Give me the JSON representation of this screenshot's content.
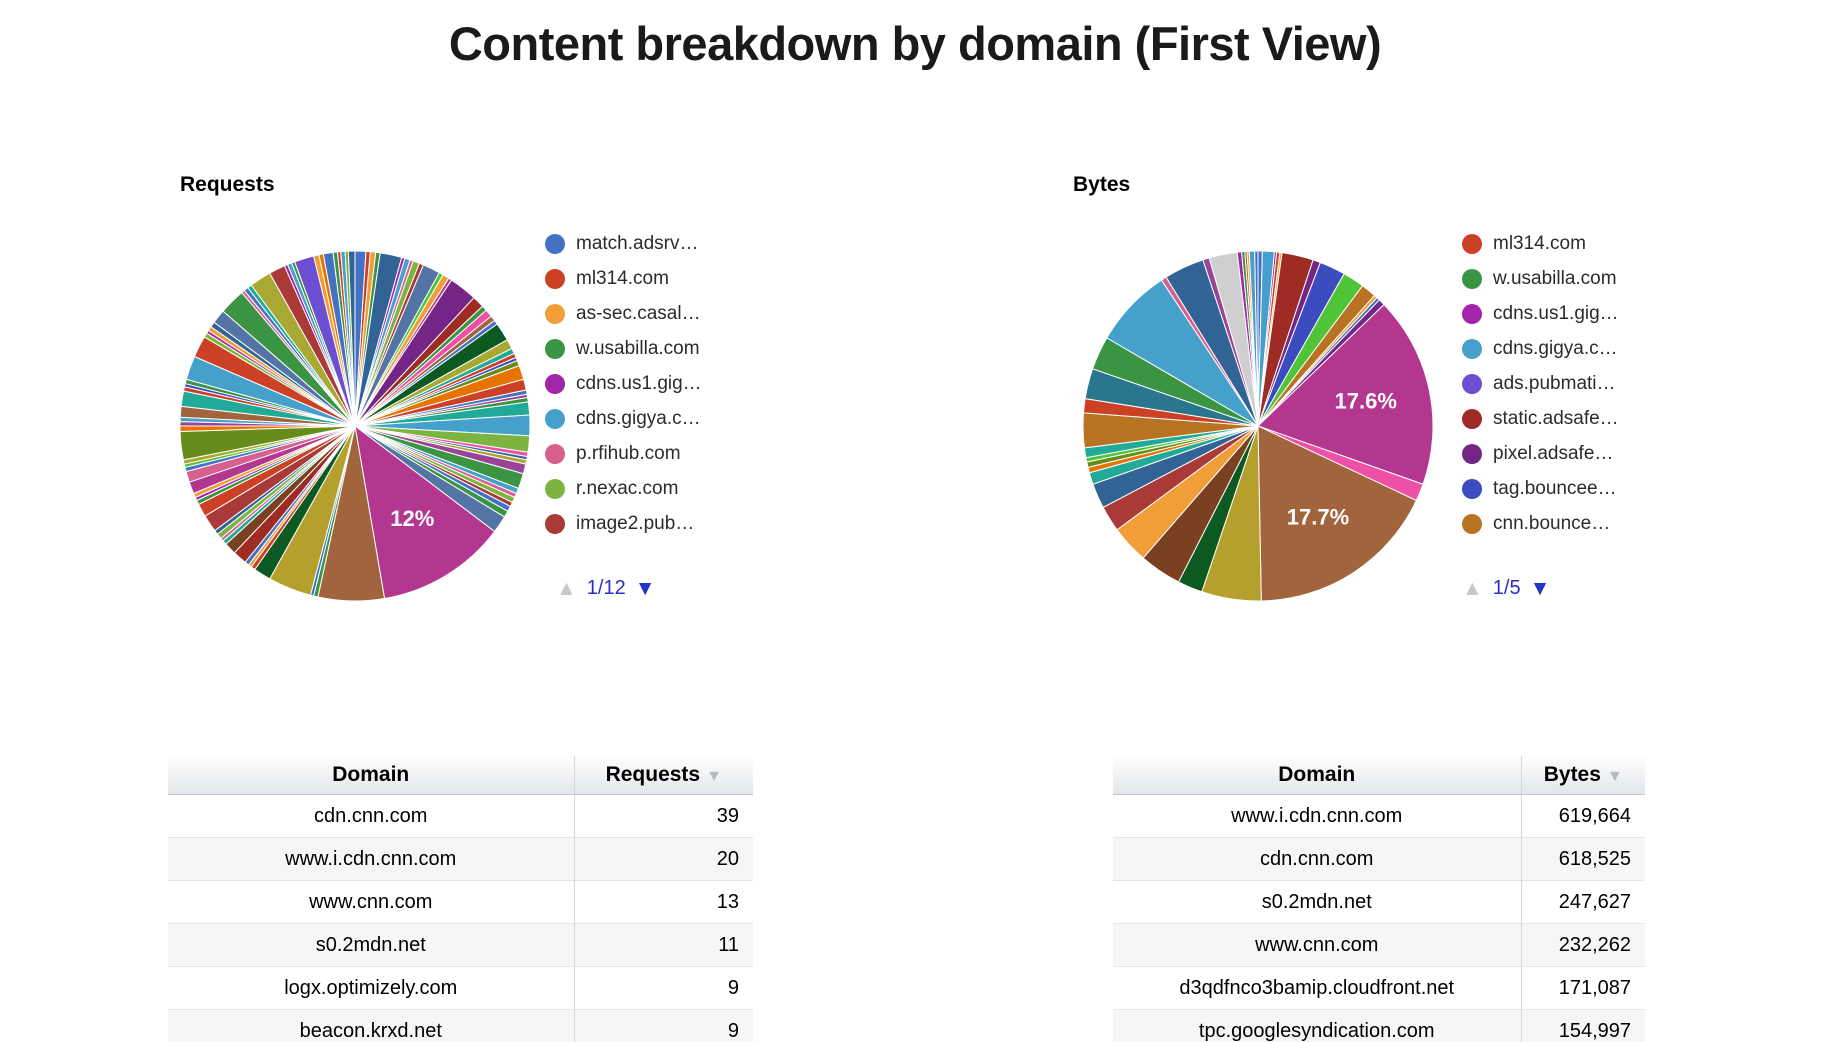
{
  "page": {
    "title": "Content breakdown by domain (First View)"
  },
  "icons": {
    "legend_prev": "▲",
    "legend_next": "▼",
    "sort_desc": "▼"
  },
  "colors": {
    "pagination_blue": "#2C2CC8",
    "pagination_disabled": "#C8C8C8",
    "requests_top_slice_magenta": "#B3368F",
    "bytes_top_slice_magenta": "#B3368F",
    "bytes_top_slice_brown": "#A2643C"
  },
  "chart_data": [
    {
      "type": "pie",
      "title": "Requests",
      "legend": {
        "position": "right",
        "page": "1/12",
        "items": [
          {
            "label": "match.adsrv…",
            "color": "#4372C4"
          },
          {
            "label": "ml314.com",
            "color": "#CC4125"
          },
          {
            "label": "as-sec.casal…",
            "color": "#F19D38"
          },
          {
            "label": "w.usabilla.com",
            "color": "#3B9444"
          },
          {
            "label": "cdns.us1.gig…",
            "color": "#A224A8"
          },
          {
            "label": "cdns.gigya.c…",
            "color": "#45A1CB"
          },
          {
            "label": "p.rfihub.com",
            "color": "#D8608F"
          },
          {
            "label": "r.nexac.com",
            "color": "#7CB440"
          },
          {
            "label": "image2.pub…",
            "color": "#A93A38"
          }
        ]
      },
      "labeled_slices": [
        {
          "label": "12%",
          "domain": "cdn.cnn.com"
        }
      ],
      "slices": [
        [
          1.0,
          "#4372C4"
        ],
        [
          0.4,
          "#CC4125"
        ],
        [
          0.5,
          "#F19D38"
        ],
        [
          0.4,
          "#3B9444"
        ],
        [
          2.0,
          "#316395"
        ],
        [
          0.3,
          "#A224A8"
        ],
        [
          0.5,
          "#45A1CB"
        ],
        [
          0.3,
          "#D8608F"
        ],
        [
          0.6,
          "#7CB440"
        ],
        [
          0.4,
          "#A93A38"
        ],
        [
          1.6,
          "#5574A6"
        ],
        [
          0.4,
          "#4FC436"
        ],
        [
          0.6,
          "#F19D38"
        ],
        [
          0.3,
          "#B3368F"
        ],
        [
          2.6,
          "#742687"
        ],
        [
          1.1,
          "#9E2B24"
        ],
        [
          0.5,
          "#3B9444"
        ],
        [
          0.7,
          "#EE4FA7"
        ],
        [
          0.5,
          "#A2643C"
        ],
        [
          0.4,
          "#4372C4"
        ],
        [
          1.7,
          "#0C5922"
        ],
        [
          0.9,
          "#A8A832"
        ],
        [
          0.5,
          "#22AA99"
        ],
        [
          0.4,
          "#CC4125"
        ],
        [
          0.3,
          "#3B4CC0"
        ],
        [
          0.5,
          "#668D1C"
        ],
        [
          1.3,
          "#E67300"
        ],
        [
          1.0,
          "#CC4125"
        ],
        [
          0.4,
          "#4372C4"
        ],
        [
          0.3,
          "#994499"
        ],
        [
          0.4,
          "#3B9444"
        ],
        [
          1.2,
          "#22AA99"
        ],
        [
          1.9,
          "#45A1CB"
        ],
        [
          1.5,
          "#7CB440"
        ],
        [
          0.4,
          "#EE4FA7"
        ],
        [
          0.3,
          "#316395"
        ],
        [
          0.4,
          "#A8A832"
        ],
        [
          0.9,
          "#994499"
        ],
        [
          1.4,
          "#3B9444"
        ],
        [
          0.5,
          "#45A1CB"
        ],
        [
          0.4,
          "#D8608F"
        ],
        [
          0.5,
          "#7CB440"
        ],
        [
          0.4,
          "#A93A38"
        ],
        [
          0.5,
          "#4372C4"
        ],
        [
          0.6,
          "#3B9444"
        ],
        [
          1.6,
          "#5574A6"
        ],
        [
          12.0,
          "#B3368F",
          "12%"
        ],
        [
          6.1,
          "#A2643C"
        ],
        [
          0.4,
          "#3B9444"
        ],
        [
          0.3,
          "#4372C4"
        ],
        [
          4.0,
          "#B5A02E"
        ],
        [
          1.6,
          "#0C5922"
        ],
        [
          0.4,
          "#CC4125"
        ],
        [
          0.3,
          "#F19D38"
        ],
        [
          0.4,
          "#4372C4"
        ],
        [
          1.3,
          "#9E2B24"
        ],
        [
          1.1,
          "#7A4022"
        ],
        [
          0.4,
          "#22AA99"
        ],
        [
          0.3,
          "#D8608F"
        ],
        [
          0.5,
          "#7CB440"
        ],
        [
          0.4,
          "#316395"
        ],
        [
          1.6,
          "#A93A38"
        ],
        [
          1.2,
          "#CC4125"
        ],
        [
          0.4,
          "#3B9444"
        ],
        [
          0.3,
          "#A224A8"
        ],
        [
          0.4,
          "#F19D38"
        ],
        [
          1.1,
          "#B3368F"
        ],
        [
          1.0,
          "#D8608F"
        ],
        [
          0.4,
          "#4372C4"
        ],
        [
          0.3,
          "#4FC436"
        ],
        [
          0.4,
          "#A8A832"
        ],
        [
          2.6,
          "#668D1C"
        ],
        [
          0.5,
          "#E67300"
        ],
        [
          0.4,
          "#994499"
        ],
        [
          0.4,
          "#45A1CB"
        ],
        [
          1.0,
          "#A2643C"
        ],
        [
          1.4,
          "#22AA99"
        ],
        [
          0.4,
          "#CC4125"
        ],
        [
          0.3,
          "#3B4CC0"
        ],
        [
          0.4,
          "#3B9444"
        ],
        [
          2.2,
          "#45A1CB"
        ],
        [
          2.0,
          "#CC4125"
        ],
        [
          0.4,
          "#7CB440"
        ],
        [
          0.3,
          "#B3368F"
        ],
        [
          0.4,
          "#F19D38"
        ],
        [
          0.5,
          "#316395"
        ],
        [
          1.3,
          "#5574A6"
        ],
        [
          2.4,
          "#3B9444"
        ],
        [
          0.3,
          "#D8608F"
        ],
        [
          0.4,
          "#4372C4"
        ],
        [
          0.4,
          "#22AA99"
        ],
        [
          2.0,
          "#A8A832"
        ],
        [
          1.5,
          "#A93A38"
        ],
        [
          0.3,
          "#A224A8"
        ],
        [
          0.4,
          "#45A1CB"
        ],
        [
          0.3,
          "#3B9444"
        ],
        [
          1.8,
          "#6B4FD0"
        ],
        [
          0.5,
          "#F19D38"
        ],
        [
          0.4,
          "#E67300"
        ],
        [
          0.9,
          "#4372C4"
        ],
        [
          0.4,
          "#3B9444"
        ],
        [
          0.3,
          "#CC4125"
        ],
        [
          0.4,
          "#45A1CB"
        ],
        [
          0.3,
          "#7CB440"
        ],
        [
          0.6,
          "#316395"
        ]
      ]
    },
    {
      "type": "pie",
      "title": "Bytes",
      "legend": {
        "position": "right",
        "page": "1/5",
        "items": [
          {
            "label": "ml314.com",
            "color": "#CC4125"
          },
          {
            "label": "w.usabilla.com",
            "color": "#3B9444"
          },
          {
            "label": "cdns.us1.gig…",
            "color": "#A224A8"
          },
          {
            "label": "cdns.gigya.c…",
            "color": "#45A1CB"
          },
          {
            "label": "ads.pubmati…",
            "color": "#6B4FD0"
          },
          {
            "label": "static.adsafe…",
            "color": "#9E2B24"
          },
          {
            "label": "pixel.adsafe…",
            "color": "#742687"
          },
          {
            "label": "tag.bouncee…",
            "color": "#3B4CC0"
          },
          {
            "label": "cnn.bounce…",
            "color": "#B77322"
          }
        ]
      },
      "labeled_slices": [
        {
          "label": "17.6%",
          "domain": "cdn.cnn.com"
        },
        {
          "label": "17.7%",
          "domain": "www.i.cdn.cnn.com"
        }
      ],
      "slices": [
        [
          0.4,
          "#4372C4"
        ],
        [
          1.1,
          "#45A1CB"
        ],
        [
          0.2,
          "#A224A8"
        ],
        [
          0.3,
          "#CC4125"
        ],
        [
          0.2,
          "#F19D38"
        ],
        [
          2.9,
          "#9E2B24"
        ],
        [
          0.7,
          "#742687"
        ],
        [
          2.4,
          "#3B4CC0"
        ],
        [
          2.0,
          "#4FC436"
        ],
        [
          1.4,
          "#B77322"
        ],
        [
          0.3,
          "#F19D38"
        ],
        [
          0.3,
          "#4372C4"
        ],
        [
          0.6,
          "#742687"
        ],
        [
          17.6,
          "#B3368F",
          "17.6%"
        ],
        [
          1.6,
          "#EE4FA7"
        ],
        [
          17.7,
          "#A2643C",
          "17.7%"
        ],
        [
          5.5,
          "#B5A02E"
        ],
        [
          2.3,
          "#0C5922"
        ],
        [
          3.9,
          "#7A4022"
        ],
        [
          3.5,
          "#F19D38"
        ],
        [
          2.4,
          "#A93A38"
        ],
        [
          2.3,
          "#316395"
        ],
        [
          1.1,
          "#22AA99"
        ],
        [
          0.5,
          "#E67300"
        ],
        [
          0.5,
          "#668D1C"
        ],
        [
          0.4,
          "#4FC436"
        ],
        [
          0.9,
          "#22AA99"
        ],
        [
          3.2,
          "#B77322"
        ],
        [
          1.3,
          "#CC4125"
        ],
        [
          2.8,
          "#2A778D"
        ],
        [
          3.1,
          "#3B9444"
        ],
        [
          7.3,
          "#45A1CB"
        ],
        [
          0.5,
          "#D8608F"
        ],
        [
          3.7,
          "#316395"
        ],
        [
          0.6,
          "#994499"
        ],
        [
          2.6,
          "#CFCFCF"
        ],
        [
          0.4,
          "#A224A8"
        ],
        [
          0.3,
          "#3B9444"
        ],
        [
          0.2,
          "#CC4125"
        ],
        [
          0.2,
          "#F19D38"
        ],
        [
          0.5,
          "#45A1CB"
        ],
        [
          0.3,
          "#4372C4"
        ]
      ]
    }
  ],
  "tables": [
    {
      "id": "requests",
      "headers": [
        "Domain",
        "Requests"
      ],
      "sort": {
        "column": "Requests",
        "direction": "desc"
      },
      "rows": [
        [
          "cdn.cnn.com",
          "39"
        ],
        [
          "www.i.cdn.cnn.com",
          "20"
        ],
        [
          "www.cnn.com",
          "13"
        ],
        [
          "s0.2mdn.net",
          "11"
        ],
        [
          "logx.optimizely.com",
          "9"
        ],
        [
          "beacon.krxd.net",
          "9"
        ]
      ]
    },
    {
      "id": "bytes",
      "headers": [
        "Domain",
        "Bytes"
      ],
      "sort": {
        "column": "Bytes",
        "direction": "desc"
      },
      "rows": [
        [
          "www.i.cdn.cnn.com",
          "619,664"
        ],
        [
          "cdn.cnn.com",
          "618,525"
        ],
        [
          "s0.2mdn.net",
          "247,627"
        ],
        [
          "www.cnn.com",
          "232,262"
        ],
        [
          "d3qdfnco3bamip.cloudfront.net",
          "171,087"
        ],
        [
          "tpc.googlesyndication.com",
          "154,997"
        ]
      ]
    }
  ]
}
